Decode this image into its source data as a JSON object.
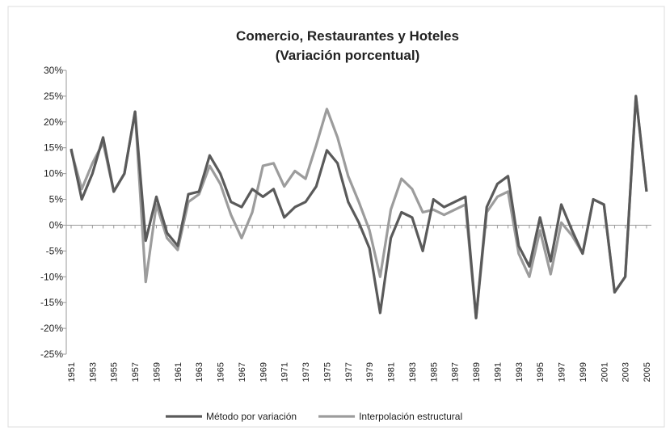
{
  "chart_data": {
    "type": "line",
    "title": "Comercio, Restaurantes y Hoteles",
    "subtitle": "(Variación  porcentual)",
    "categories": [
      "1951",
      null,
      "1953",
      null,
      "1955",
      null,
      "1957",
      null,
      "1959",
      null,
      "1961",
      null,
      "1963",
      null,
      "1965",
      null,
      "1967",
      null,
      "1969",
      null,
      "1971",
      null,
      "1973",
      null,
      "1975",
      null,
      "1977",
      null,
      "1979",
      null,
      "1981",
      null,
      "1983",
      null,
      "1985",
      null,
      "1987",
      null,
      "1989",
      null,
      "1991",
      null,
      "1993",
      null,
      "1995",
      null,
      "1997",
      null,
      "1999",
      null,
      "2001",
      null,
      "2003",
      null,
      "2005"
    ],
    "series": [
      {
        "name": "Método por variación",
        "color": "#5a5a5a",
        "values": [
          14.8,
          5,
          10,
          17,
          6.5,
          10,
          22,
          -3,
          5.5,
          -1.5,
          -4,
          6,
          6.5,
          13.5,
          10,
          4.5,
          3.5,
          7,
          5.5,
          7,
          1.5,
          3.5,
          4.5,
          7.5,
          14.5,
          12,
          4.5,
          0.5,
          -4.5,
          -17,
          -2.5,
          2.5,
          1.5,
          -5,
          5,
          3.5,
          4.5,
          5.5,
          -18,
          3.5,
          8,
          9.5,
          -4,
          -8,
          1.5,
          -7,
          4,
          -1,
          -5.5,
          5,
          4,
          -13,
          -10,
          25,
          6.5
        ]
      },
      {
        "name": "Interpolación estructural",
        "color": "#9c9c9c",
        "values": [
          14.5,
          7,
          12,
          16,
          6.5,
          10,
          22,
          -11,
          4,
          -2.5,
          -4.8,
          4.5,
          6,
          11.5,
          8,
          2,
          -2.5,
          2.5,
          11.5,
          12,
          7.5,
          10.5,
          9,
          15.5,
          22.5,
          17,
          9.5,
          4.5,
          -1,
          -10,
          3,
          9,
          7,
          2.5,
          3,
          2,
          3,
          4,
          -18,
          2.5,
          5.5,
          6.5,
          -5.5,
          -10,
          -1,
          -9.5,
          0.5,
          -2,
          -5.5,
          5,
          4,
          -13,
          -10,
          25,
          6.5
        ]
      }
    ],
    "ylim": [
      -25,
      30
    ],
    "yticks": [
      {
        "value": -25,
        "label": "-25%"
      },
      {
        "value": -20,
        "label": "-20%"
      },
      {
        "value": -15,
        "label": "-15%"
      },
      {
        "value": -10,
        "label": "-10%"
      },
      {
        "value": -5,
        "label": "-5%"
      },
      {
        "value": 0,
        "label": "0%"
      },
      {
        "value": 5,
        "label": "5%"
      },
      {
        "value": 10,
        "label": "10%"
      },
      {
        "value": 15,
        "label": "15%"
      },
      {
        "value": 20,
        "label": "20%"
      },
      {
        "value": 25,
        "label": "25%"
      },
      {
        "value": 30,
        "label": "30%"
      }
    ],
    "legend": "bottom"
  }
}
